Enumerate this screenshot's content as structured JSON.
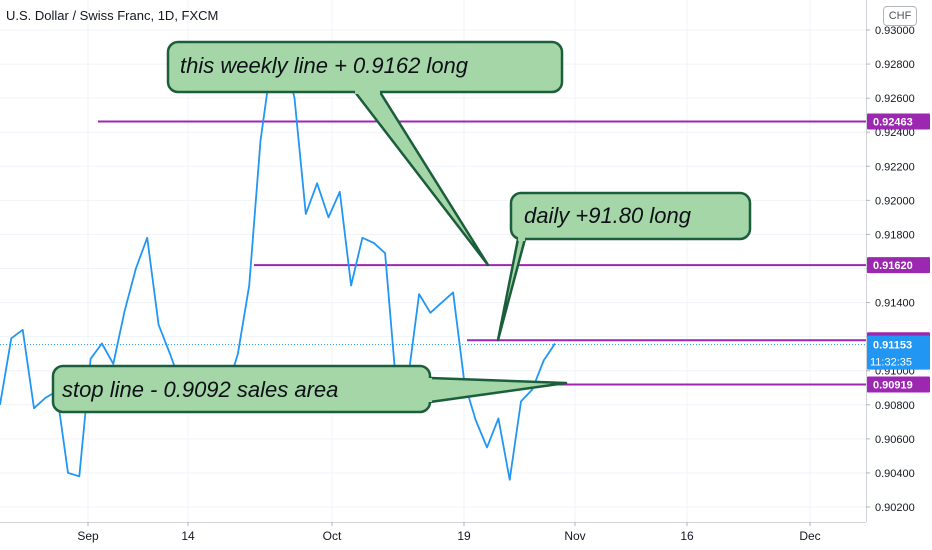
{
  "header": {
    "title": "U.S. Dollar / Swiss Franc, 1D, FXCM",
    "currency": "CHF"
  },
  "colors": {
    "price_line": "#2196f3",
    "level_line": "#9c27b0",
    "callout_fill": "#a5d6a7",
    "callout_border": "#1b5e3b",
    "last_price_label": "#2196f3"
  },
  "chart_data": {
    "type": "line",
    "title": "U.S. Dollar / Swiss Franc, 1D, FXCM",
    "ylim": [
      0.9012,
      0.9305
    ],
    "grid": true,
    "x_ticks": [
      "Sep",
      "14",
      "Oct",
      "19",
      "Nov",
      "16",
      "Dec"
    ],
    "y_ticks": [
      "0.93000",
      "0.92800",
      "0.92600",
      "0.92400",
      "0.92200",
      "0.92000",
      "0.91800",
      "0.91600",
      "0.91400",
      "0.91200",
      "0.91000",
      "0.90800",
      "0.90600",
      "0.90400",
      "0.90200"
    ],
    "series": [
      {
        "values": [
          0.908,
          0.9119,
          0.9124,
          0.9078,
          0.9084,
          0.9088,
          0.904,
          0.9038,
          0.9107,
          0.9116,
          0.9104,
          0.9135,
          0.916,
          0.9178,
          0.9127,
          0.911,
          0.9092,
          0.9087,
          0.9085,
          0.9096,
          0.9088,
          0.911,
          0.915,
          0.9235,
          0.9283,
          0.9288,
          0.926,
          0.9192,
          0.921,
          0.919,
          0.9205,
          0.915,
          0.9178,
          0.9175,
          0.9169,
          0.909,
          0.9094,
          0.9145,
          0.9134,
          0.914,
          0.9146,
          0.9093,
          0.9071,
          0.9055,
          0.9072,
          0.9036,
          0.9082,
          0.9089,
          0.9106,
          0.9116
        ]
      }
    ],
    "levels": [
      {
        "value": 0.92463,
        "label": "0.92463"
      },
      {
        "value": 0.9162,
        "label": "0.91620"
      },
      {
        "value": 0.91179,
        "label": "0.91179"
      },
      {
        "value": 0.90919,
        "label": "0.90919"
      }
    ],
    "last_price": {
      "value": 0.91153,
      "label": "0.91153",
      "countdown": "11:32:35"
    },
    "annotations": [
      {
        "text": "this weekly line + 0.9162 long"
      },
      {
        "text": "daily +91.80 long"
      },
      {
        "text": "stop line - 0.9092  sales area"
      }
    ]
  }
}
